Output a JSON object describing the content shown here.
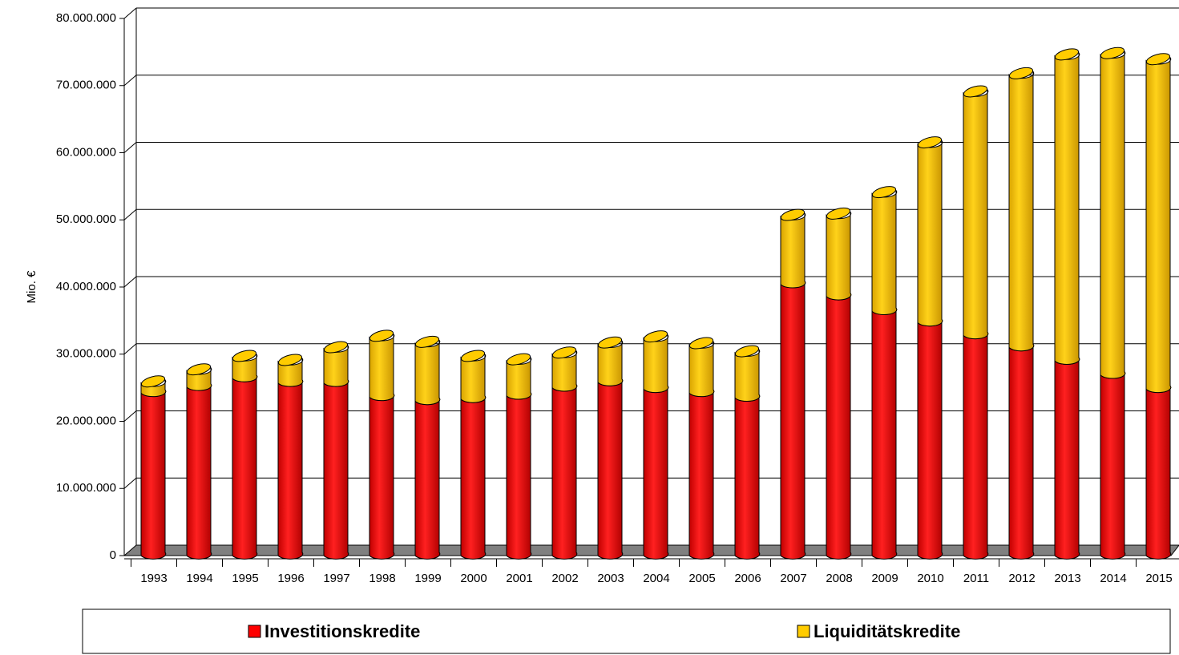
{
  "chart_data": {
    "type": "bar3d_stacked",
    "y_label": "Mio. €",
    "categories": [
      "1993",
      "1994",
      "1995",
      "1996",
      "1997",
      "1998",
      "1999",
      "2000",
      "2001",
      "2002",
      "2003",
      "2004",
      "2005",
      "2006",
      "2007",
      "2008",
      "2009",
      "2010",
      "2011",
      "2012",
      "2013",
      "2014",
      "2015"
    ],
    "series": [
      {
        "name": "Investitionskredite",
        "color": "#ff0000",
        "values": [
          24200000,
          25100000,
          26400000,
          25700000,
          25700000,
          23600000,
          23000000,
          23300000,
          23800000,
          25000000,
          25800000,
          24800000,
          24200000,
          23500000,
          40400000,
          38600000,
          36400000,
          34700000,
          32800000,
          31000000,
          29000000,
          26900000,
          24800000
        ]
      },
      {
        "name": "Liquiditätskredite",
        "color": "#ffcc00",
        "values": [
          1500000,
          2400000,
          3100000,
          3200000,
          5100000,
          8900000,
          8600000,
          6200000,
          5200000,
          5000000,
          5700000,
          7600000,
          7200000,
          6700000,
          10100000,
          12100000,
          17500000,
          26600000,
          36100000,
          40600000,
          45400000,
          47700000,
          48900000
        ]
      }
    ],
    "ylim": [
      0,
      80000000
    ],
    "yticks": [
      0,
      {
        "value": 10000000,
        "label": "10.000.000"
      },
      {
        "value": 20000000,
        "label": "20.000.000"
      },
      {
        "value": 30000000,
        "label": "30.000.000"
      },
      {
        "value": 40000000,
        "label": "40.000.000"
      },
      {
        "value": 50000000,
        "label": "50.000.000"
      },
      {
        "value": 60000000,
        "label": "60.000.000"
      },
      {
        "value": 70000000,
        "label": "70.000.000"
      },
      {
        "value": 80000000,
        "label": "80.000.000"
      }
    ],
    "grid": true
  }
}
